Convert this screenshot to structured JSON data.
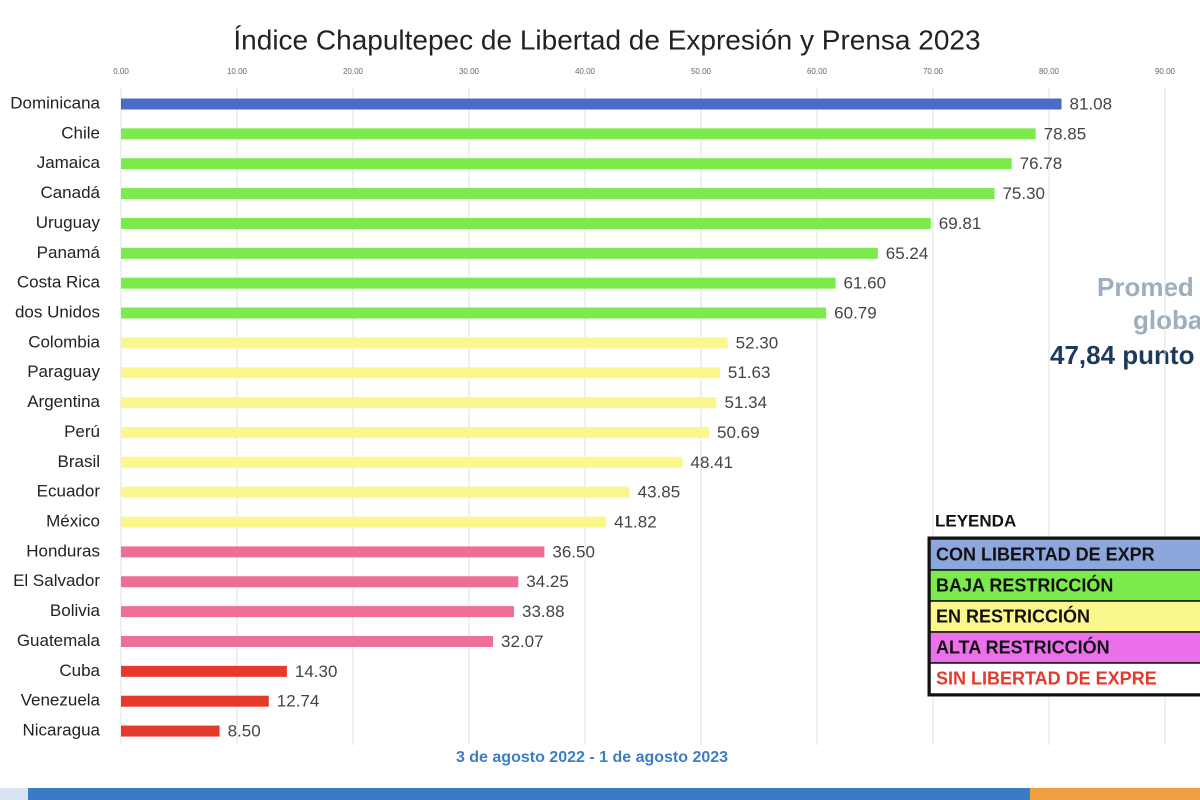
{
  "chart_data": {
    "type": "barh",
    "title": "Índice Chapultepec de Libertad de Expresión y Prensa 2023",
    "subtitle": "3 de agosto 2022 - 1 de agosto 2023",
    "categories": [
      "Dominicana",
      "Chile",
      "Jamaica",
      "Canadá",
      "Uruguay",
      "Panamá",
      "Costa Rica",
      "dos Unidos",
      "Colombia",
      "Paraguay",
      "Argentina",
      "Perú",
      "Brasil",
      "Ecuador",
      "México",
      "Honduras",
      "El Salvador",
      "Bolivia",
      "Guatemala",
      "Cuba",
      "Venezuela",
      "Nicaragua"
    ],
    "values": [
      81.08,
      78.85,
      76.78,
      75.3,
      69.81,
      65.24,
      61.6,
      60.79,
      52.3,
      51.63,
      51.34,
      50.69,
      48.41,
      43.85,
      41.82,
      36.5,
      34.25,
      33.88,
      32.07,
      14.3,
      12.74,
      8.5
    ],
    "value_labels": [
      "81.08",
      "78.85",
      "76.78",
      "75.30",
      "69.81",
      "65.24",
      "61.60",
      "60.79",
      "52.30",
      "51.63",
      "51.34",
      "50.69",
      "48.41",
      "43.85",
      "41.82",
      "36.50",
      "34.25",
      "33.88",
      "32.07",
      "14.30",
      "12.74",
      "8.50"
    ],
    "colors": [
      "#4a6cc6",
      "#7cea4c",
      "#7cea4c",
      "#7cea4c",
      "#7cea4c",
      "#7cea4c",
      "#7cea4c",
      "#7cea4c",
      "#faf88c",
      "#faf88c",
      "#faf88c",
      "#faf88c",
      "#faf88c",
      "#faf88c",
      "#faf88c",
      "#ee6f96",
      "#ee6f96",
      "#ee6f96",
      "#ee6f96",
      "#e5392b",
      "#e5392b",
      "#e5392b"
    ],
    "xlim": [
      0,
      90
    ],
    "xticks": [
      {
        "value": 0,
        "label": "0.00"
      },
      {
        "value": 10,
        "label": "10.00"
      },
      {
        "value": 20,
        "label": "20.00"
      },
      {
        "value": 30,
        "label": "30.00"
      },
      {
        "value": 40,
        "label": "40.00"
      },
      {
        "value": 50,
        "label": "50.00"
      },
      {
        "value": 60,
        "label": "60.00"
      },
      {
        "value": 70,
        "label": "70.00"
      },
      {
        "value": 80,
        "label": "80.00"
      },
      {
        "value": 90,
        "label": "90.00"
      }
    ],
    "grid": true,
    "annotations": [
      "Promed",
      "globa",
      "47,84 punto"
    ],
    "legend": {
      "title": "LEYENDA",
      "items": [
        {
          "label": "CON LIBERTAD DE EXPR",
          "color": "#8da6dc"
        },
        {
          "label": "BAJA RESTRICCIÓN",
          "color": "#7cea4c"
        },
        {
          "label": "EN RESTRICCIÓN",
          "color": "#faf88c"
        },
        {
          "label": "ALTA RESTRICCIÓN",
          "color": "#ec6fec"
        },
        {
          "label": "SIN LIBERTAD DE EXPRE",
          "color": "#ffffff"
        }
      ]
    }
  }
}
